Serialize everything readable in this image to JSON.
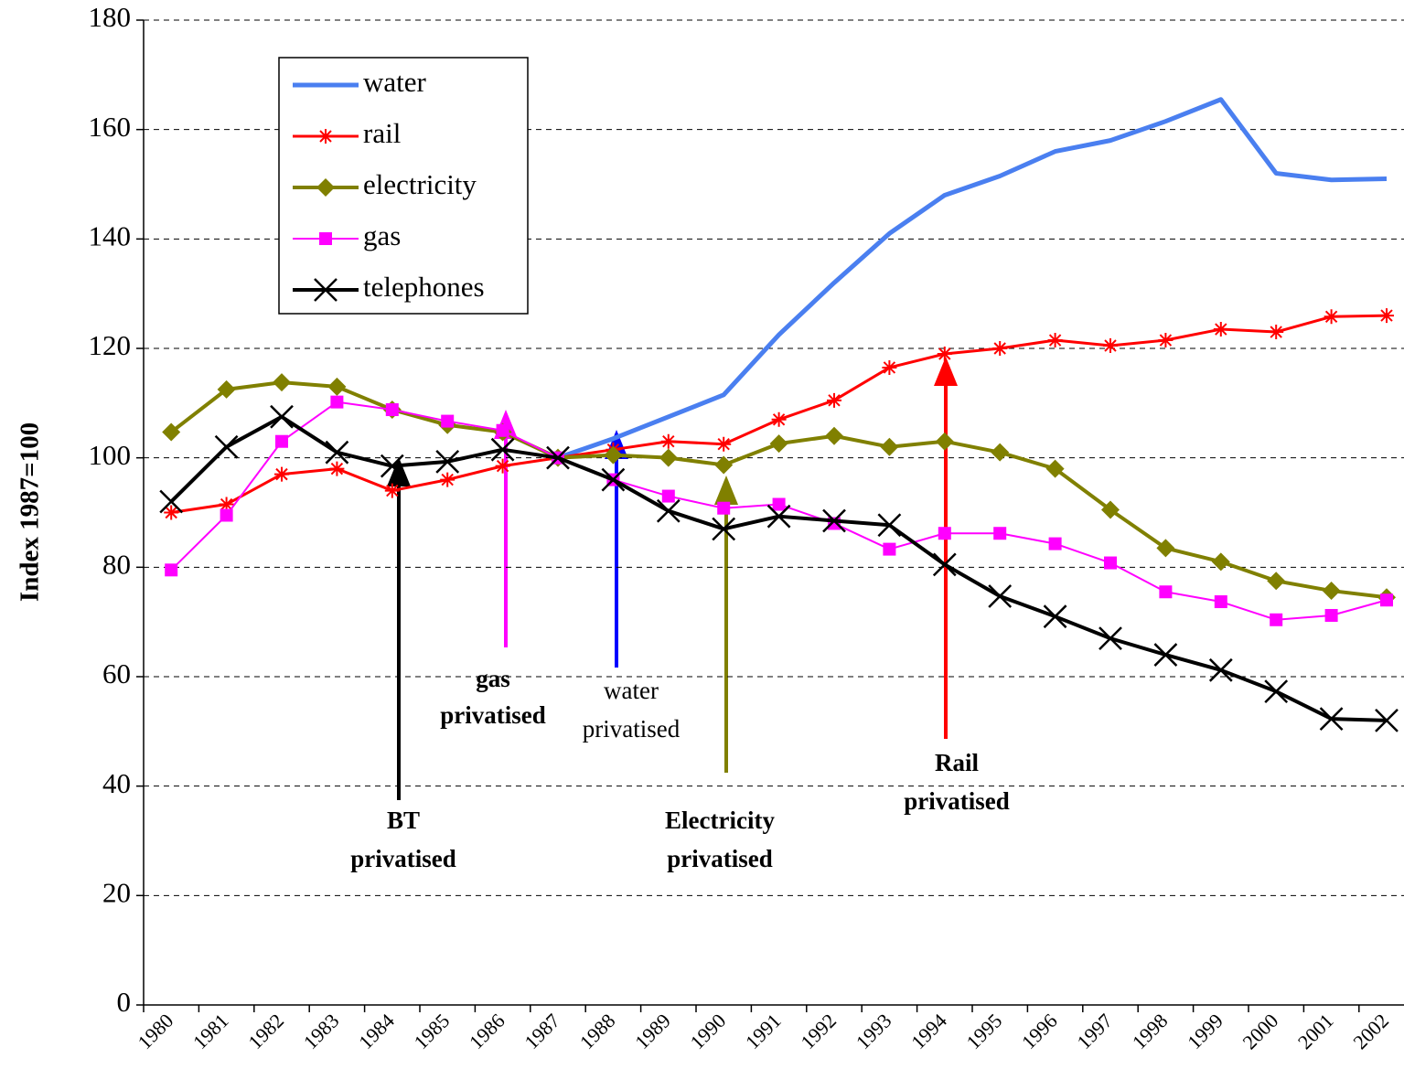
{
  "chart_data": {
    "type": "line",
    "ylabel": "Index 1987=100",
    "categories": [
      "1980",
      "1981",
      "1982",
      "1983",
      "1984",
      "1985",
      "1986",
      "1987",
      "1988",
      "1989",
      "1990",
      "1991",
      "1992",
      "1993",
      "1994",
      "1995",
      "1996",
      "1997",
      "1998",
      "1999",
      "2000",
      "2001",
      "2002"
    ],
    "series": [
      {
        "name": "water",
        "color": "#4a7ff0",
        "marker": "none",
        "line_width": 5,
        "values": [
          null,
          null,
          null,
          null,
          null,
          null,
          null,
          100,
          103.5,
          107.5,
          111.5,
          122.5,
          132,
          141,
          148,
          151.5,
          156,
          158,
          161.5,
          165.5,
          152,
          150.8,
          151
        ]
      },
      {
        "name": "rail",
        "color": "#ff0000",
        "marker": "star",
        "line_width": 3,
        "values": [
          90,
          91.5,
          97,
          98,
          94,
          96,
          98.5,
          100,
          101.5,
          103,
          102.5,
          107,
          110.5,
          116.5,
          119,
          120,
          121.5,
          120.5,
          121.5,
          123.5,
          123,
          125.8,
          126
        ]
      },
      {
        "name": "electricity",
        "color": "#808000",
        "marker": "diamond",
        "line_width": 4,
        "values": [
          104.7,
          112.5,
          113.8,
          113,
          108.8,
          106,
          104.7,
          100,
          100.5,
          100,
          98.7,
          102.6,
          104,
          102,
          103,
          101,
          98,
          90.5,
          83.5,
          81,
          77.5,
          75.7,
          74.5
        ]
      },
      {
        "name": "gas",
        "color": "#ff00ff",
        "marker": "square",
        "line_width": 2,
        "values": [
          79.5,
          89.5,
          103,
          110.2,
          108.8,
          106.7,
          105,
          100,
          96,
          93,
          90.8,
          91.5,
          88,
          83.3,
          86.2,
          86.2,
          84.3,
          80.8,
          75.5,
          73.7,
          70.4,
          71.2,
          74
        ]
      },
      {
        "name": "telephones",
        "color": "#000000",
        "marker": "x",
        "line_width": 4,
        "values": [
          92,
          102,
          107.5,
          101,
          98.5,
          99.3,
          101.5,
          100,
          96,
          90.3,
          87,
          89.3,
          88.5,
          87.7,
          80.5,
          74.7,
          71,
          67,
          64,
          61.2,
          57.3,
          52.3,
          52
        ]
      }
    ],
    "ylim": [
      0,
      180
    ],
    "yticks": [
      0,
      20,
      40,
      60,
      80,
      100,
      120,
      140,
      160,
      180
    ],
    "grid": true,
    "legend": "upper left",
    "annotations": [
      {
        "lines": [
          "BT",
          "privatised"
        ]
      },
      {
        "lines": [
          "gas",
          "privatised"
        ]
      },
      {
        "lines": [
          "water",
          "privatised"
        ]
      },
      {
        "lines": [
          "Electricity",
          "privatised"
        ]
      },
      {
        "lines": [
          "Rail",
          "privatised"
        ]
      }
    ]
  }
}
